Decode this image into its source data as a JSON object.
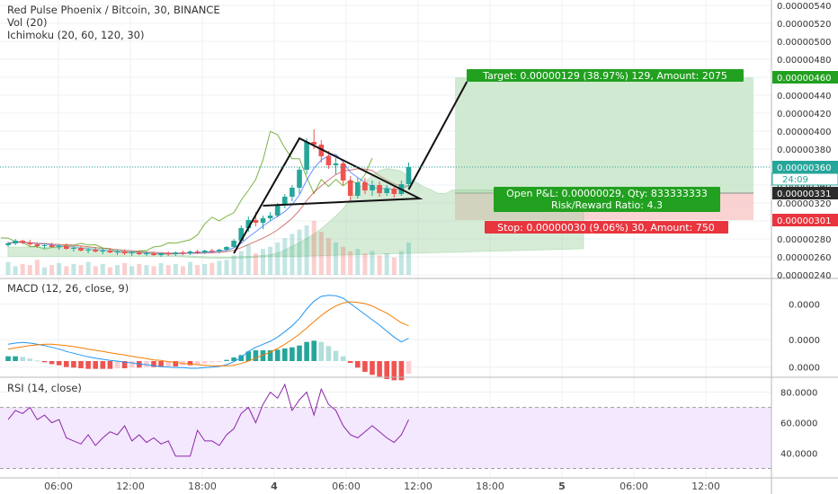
{
  "header": {
    "title": "Red Pulse Phoenix / Bitcoin, 30, BINANCE",
    "vol": "Vol (20)",
    "ichimoku": "Ichimoku (20, 60, 120, 30)"
  },
  "panes": {
    "macd_label": "MACD (12, 26, close, 9)",
    "rsi_label": "RSI (14, close)"
  },
  "colors": {
    "up": "#26a69a",
    "down": "#ef5350",
    "profit_zone": "#c8e6c9",
    "loss_zone": "#f8caca",
    "target_badge": "#22a020",
    "stop_badge": "#e8353e",
    "rsi_band": "#f3e8fd",
    "rsi_line": "#8e24aa",
    "macd_line": "#2196f3",
    "signal_line": "#f57c00",
    "current_price": "#26a69a"
  },
  "chart_data": [
    {
      "type": "candlestick",
      "title": "Red Pulse Phoenix / Bitcoin, 30, BINANCE",
      "y_ticks": [
        "0.00000540",
        "0.00000520",
        "0.00000500",
        "0.00000480",
        "0.00000460",
        "0.00000440",
        "0.00000420",
        "0.00000400",
        "0.00000380",
        "0.00000360",
        "0.00000340",
        "0.00000320",
        "0.00000300",
        "0.00000280",
        "0.00000260",
        "0.00000240"
      ],
      "ylim": [
        2.4e-06,
        5.4e-06
      ],
      "x_ticks": [
        "06:00",
        "12:00",
        "18:00",
        "4",
        "06:00",
        "12:00",
        "18:00",
        "5",
        "06:00",
        "12:00"
      ],
      "candles": [
        [
          2.73e-06,
          2.77e-06,
          2.71e-06,
          2.75e-06
        ],
        [
          2.75e-06,
          2.8e-06,
          2.73e-06,
          2.78e-06
        ],
        [
          2.78e-06,
          2.79e-06,
          2.74e-06,
          2.76e-06
        ],
        [
          2.76e-06,
          2.79e-06,
          2.72e-06,
          2.74e-06
        ],
        [
          2.74e-06,
          2.76e-06,
          2.7e-06,
          2.72e-06
        ],
        [
          2.72e-06,
          2.75e-06,
          2.69e-06,
          2.73e-06
        ],
        [
          2.73e-06,
          2.76e-06,
          2.7e-06,
          2.71e-06
        ],
        [
          2.71e-06,
          2.74e-06,
          2.68e-06,
          2.72e-06
        ],
        [
          2.72e-06,
          2.75e-06,
          2.68e-06,
          2.69e-06
        ],
        [
          2.69e-06,
          2.72e-06,
          2.66e-06,
          2.7e-06
        ],
        [
          2.7e-06,
          2.72e-06,
          2.66e-06,
          2.67e-06
        ],
        [
          2.67e-06,
          2.7e-06,
          2.64e-06,
          2.68e-06
        ],
        [
          2.68e-06,
          2.71e-06,
          2.65e-06,
          2.66e-06
        ],
        [
          2.66e-06,
          2.69e-06,
          2.63e-06,
          2.67e-06
        ],
        [
          2.67e-06,
          2.7e-06,
          2.64e-06,
          2.65e-06
        ],
        [
          2.65e-06,
          2.68e-06,
          2.62e-06,
          2.66e-06
        ],
        [
          2.66e-06,
          2.68e-06,
          2.62e-06,
          2.64e-06
        ],
        [
          2.64e-06,
          2.67e-06,
          2.61e-06,
          2.65e-06
        ],
        [
          2.65e-06,
          2.67e-06,
          2.62e-06,
          2.63e-06
        ],
        [
          2.63e-06,
          2.66e-06,
          2.61e-06,
          2.64e-06
        ],
        [
          2.64e-06,
          2.66e-06,
          2.61e-06,
          2.62e-06
        ],
        [
          2.62e-06,
          2.65e-06,
          2.6e-06,
          2.64e-06
        ],
        [
          2.64e-06,
          2.66e-06,
          2.61e-06,
          2.63e-06
        ],
        [
          2.63e-06,
          2.66e-06,
          2.61e-06,
          2.65e-06
        ],
        [
          2.65e-06,
          2.67e-06,
          2.62e-06,
          2.64e-06
        ],
        [
          2.64e-06,
          2.67e-06,
          2.62e-06,
          2.66e-06
        ],
        [
          2.66e-06,
          2.68e-06,
          2.63e-06,
          2.65e-06
        ],
        [
          2.65e-06,
          2.68e-06,
          2.63e-06,
          2.67e-06
        ],
        [
          2.67e-06,
          2.69e-06,
          2.64e-06,
          2.66e-06
        ],
        [
          2.66e-06,
          2.69e-06,
          2.64e-06,
          2.68e-06
        ],
        [
          2.68e-06,
          2.72e-06,
          2.66e-06,
          2.71e-06
        ],
        [
          2.71e-06,
          2.8e-06,
          2.7e-06,
          2.78e-06
        ],
        [
          2.78e-06,
          2.95e-06,
          2.76e-06,
          2.92e-06
        ],
        [
          2.92e-06,
          3.05e-06,
          2.88e-06,
          3.01e-06
        ],
        [
          3.01e-06,
          3.1e-06,
          2.94e-06,
          2.98e-06
        ],
        [
          2.98e-06,
          3.06e-06,
          2.91e-06,
          3.03e-06
        ],
        [
          3.03e-06,
          3.1e-06,
          3e-06,
          3.06e-06
        ],
        [
          3.06e-06,
          3.2e-06,
          3.04e-06,
          3.18e-06
        ],
        [
          3.18e-06,
          3.3e-06,
          3.14e-06,
          3.27e-06
        ],
        [
          3.27e-06,
          3.4e-06,
          3.22e-06,
          3.37e-06
        ],
        [
          3.37e-06,
          3.6e-06,
          3.3e-06,
          3.57e-06
        ],
        [
          3.57e-06,
          3.92e-06,
          3.52e-06,
          3.88e-06
        ],
        [
          3.88e-06,
          4.02e-06,
          3.8e-06,
          3.85e-06
        ],
        [
          3.85e-06,
          3.9e-06,
          3.65e-06,
          3.72e-06
        ],
        [
          3.72e-06,
          3.78e-06,
          3.58e-06,
          3.62e-06
        ],
        [
          3.62e-06,
          3.7e-06,
          3.52e-06,
          3.64e-06
        ],
        [
          3.64e-06,
          3.66e-06,
          3.4e-06,
          3.45e-06
        ],
        [
          3.45e-06,
          3.5e-06,
          3.22e-06,
          3.28e-06
        ],
        [
          3.28e-06,
          3.48e-06,
          3.25e-06,
          3.43e-06
        ],
        [
          3.43e-06,
          3.48e-06,
          3.3e-06,
          3.34e-06
        ],
        [
          3.34e-06,
          3.45e-06,
          3.28e-06,
          3.4e-06
        ],
        [
          3.4e-06,
          3.44e-06,
          3.27e-06,
          3.31e-06
        ],
        [
          3.31e-06,
          3.4e-06,
          3.28e-06,
          3.36e-06
        ],
        [
          3.36e-06,
          3.4e-06,
          3.26e-06,
          3.3e-06
        ],
        [
          3.3e-06,
          3.45e-06,
          3.28e-06,
          3.41e-06
        ],
        [
          3.41e-06,
          3.65e-06,
          3.38e-06,
          3.6e-06
        ]
      ],
      "volume": [
        12,
        8,
        10,
        9,
        14,
        7,
        9,
        11,
        8,
        10,
        9,
        12,
        8,
        10,
        7,
        9,
        11,
        8,
        10,
        9,
        8,
        11,
        9,
        10,
        8,
        12,
        9,
        10,
        11,
        13,
        14,
        18,
        22,
        28,
        20,
        24,
        26,
        30,
        34,
        38,
        42,
        46,
        50,
        40,
        34,
        30,
        26,
        22,
        24,
        20,
        22,
        18,
        20,
        16,
        22,
        30
      ],
      "annotations": [
        "Target: 0.00000129 (38.97%) 129, Amount: 2075",
        "Open P&L: 0.00000029, Qty: 833333333",
        "Risk/Reward Ratio: 4.3",
        "Stop: 0.00000030 (9.06%) 30, Amount: 750"
      ],
      "price_labels": {
        "target": "0.00000460",
        "current": "0.00000360",
        "countdown": "24:09",
        "entry": "0.00000331",
        "stop": "0.00000301"
      }
    },
    {
      "type": "line",
      "title": "MACD (12, 26, close, 9)",
      "y_ticks": [
        "0.0000",
        "0.0000",
        "0.0000"
      ],
      "ylim": [
        -1.5,
        12
      ],
      "series": [
        {
          "name": "MACD",
          "values": [
            2.8,
            3.0,
            3.1,
            3.0,
            2.8,
            2.6,
            2.3,
            2.0,
            1.6,
            1.3,
            1.0,
            0.7,
            0.5,
            0.3,
            0.1,
            0.0,
            -0.2,
            -0.3,
            -0.5,
            -0.6,
            -0.8,
            -0.9,
            -1.0,
            -1.1,
            -1.1,
            -1.2,
            -1.2,
            -1.1,
            -1.0,
            -0.9,
            -0.6,
            -0.1,
            0.6,
            1.6,
            2.3,
            2.8,
            3.3,
            4.0,
            4.9,
            5.9,
            7.1,
            8.7,
            10.0,
            10.8,
            11.0,
            10.9,
            10.5,
            9.6,
            8.7,
            7.8,
            6.9,
            6.0,
            5.0,
            4.0,
            3.2,
            3.8
          ]
        },
        {
          "name": "Signal",
          "values": [
            2.0,
            2.2,
            2.4,
            2.6,
            2.7,
            2.8,
            2.8,
            2.7,
            2.6,
            2.4,
            2.2,
            2.0,
            1.8,
            1.6,
            1.4,
            1.2,
            1.0,
            0.8,
            0.6,
            0.4,
            0.2,
            0.1,
            -0.1,
            -0.2,
            -0.4,
            -0.5,
            -0.6,
            -0.7,
            -0.8,
            -0.8,
            -0.8,
            -0.7,
            -0.4,
            0.0,
            0.5,
            1.0,
            1.5,
            2.1,
            2.8,
            3.6,
            4.5,
            5.5,
            6.6,
            7.6,
            8.5,
            9.2,
            9.7,
            9.9,
            9.8,
            9.6,
            9.2,
            8.6,
            8.0,
            7.2,
            6.4,
            5.9
          ]
        }
      ],
      "histogram": [
        0.8,
        0.8,
        0.7,
        0.4,
        0.1,
        -0.2,
        -0.5,
        -0.7,
        -1.0,
        -1.1,
        -1.2,
        -1.3,
        -1.3,
        -1.3,
        -1.3,
        -1.2,
        -1.2,
        -1.1,
        -1.1,
        -1.0,
        -1.0,
        -1.0,
        -0.9,
        -0.9,
        -0.7,
        -0.7,
        -0.6,
        -0.4,
        -0.2,
        -0.1,
        0.2,
        0.6,
        1.0,
        1.6,
        1.8,
        1.8,
        1.8,
        1.9,
        2.1,
        2.3,
        2.6,
        3.2,
        3.4,
        3.2,
        2.5,
        1.7,
        0.8,
        -0.3,
        -1.1,
        -1.8,
        -2.3,
        -2.6,
        -3.0,
        -3.2,
        -3.2,
        -2.1
      ]
    },
    {
      "type": "line",
      "title": "RSI (14, close)",
      "y_ticks": [
        "80.0000",
        "60.0000",
        "40.0000"
      ],
      "ylim": [
        25,
        88
      ],
      "band": [
        30,
        70
      ],
      "series": [
        {
          "name": "RSI",
          "values": [
            62,
            68,
            66,
            70,
            62,
            65,
            60,
            62,
            50,
            48,
            46,
            52,
            45,
            50,
            54,
            52,
            58,
            48,
            52,
            47,
            50,
            46,
            48,
            38,
            38,
            38,
            55,
            48,
            48,
            45,
            52,
            56,
            66,
            70,
            60,
            72,
            80,
            76,
            85,
            68,
            75,
            80,
            65,
            82,
            72,
            68,
            58,
            52,
            50,
            54,
            58,
            54,
            50,
            47,
            52,
            62
          ]
        }
      ]
    }
  ]
}
